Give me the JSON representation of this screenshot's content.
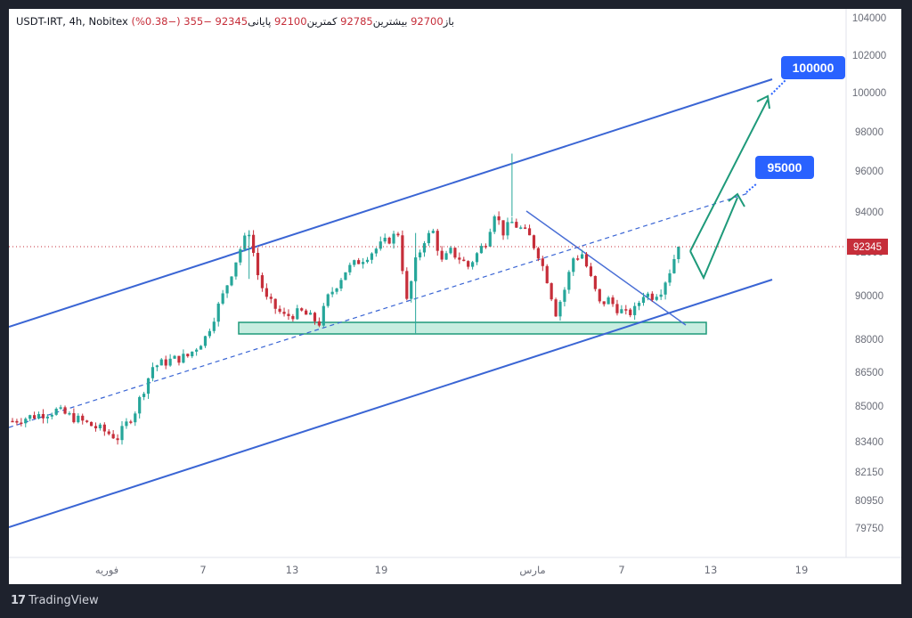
{
  "header": {
    "symbol": "USDT-IRT, 4h, Nobitex",
    "open_label": "باز",
    "open_value": "92700",
    "high_label": "بیشترین",
    "high_value": "92785",
    "low_label": "کمترین",
    "low_value": "92100",
    "close_label": "پایانی",
    "close_value": "92345",
    "change": "−355 (−0.38%)"
  },
  "footer": {
    "brand": "TradingView"
  },
  "colors": {
    "up": "#26a69a",
    "down": "#c62e3a",
    "channel": "#3a65d4",
    "zone": "#1e9a7a",
    "target_badge": "#2962ff",
    "price_badge": "#c62e3a"
  },
  "chart_data": {
    "type": "candlestick",
    "timeframe": "4h",
    "y_axis": {
      "ticks": [
        "104000",
        "102000",
        "100000",
        "98000",
        "96000",
        "94000",
        "92000",
        "90000",
        "88000",
        "86500",
        "85000",
        "83400",
        "82150",
        "80950",
        "79750"
      ],
      "current_price": "92345"
    },
    "x_axis": {
      "ticks": [
        "فوریه",
        "7",
        "13",
        "19",
        "مارس",
        "7",
        "13",
        "19"
      ]
    },
    "targets": [
      "95000",
      "100000"
    ],
    "price_path": [
      [
        0,
        84000
      ],
      [
        6,
        84300
      ],
      [
        10,
        84500
      ],
      [
        14,
        84150
      ],
      [
        20,
        83600
      ],
      [
        24,
        83200
      ],
      [
        28,
        84500
      ],
      [
        32,
        86600
      ],
      [
        36,
        86900
      ],
      [
        40,
        87100
      ],
      [
        44,
        88000
      ],
      [
        48,
        90000
      ],
      [
        52,
        92250
      ],
      [
        54,
        93100
      ],
      [
        56,
        91000
      ],
      [
        58,
        89800
      ],
      [
        62,
        89000
      ],
      [
        66,
        89200
      ],
      [
        70,
        88700
      ],
      [
        72,
        89900
      ],
      [
        76,
        91200
      ],
      [
        80,
        91800
      ],
      [
        84,
        92400
      ],
      [
        88,
        93000
      ],
      [
        90,
        89700
      ],
      [
        92,
        91600
      ],
      [
        94,
        92700
      ],
      [
        96,
        93050
      ],
      [
        98,
        91600
      ],
      [
        100,
        92100
      ],
      [
        102,
        91800
      ],
      [
        104,
        91400
      ],
      [
        108,
        92600
      ],
      [
        110,
        94000
      ],
      [
        112,
        93050
      ],
      [
        114,
        93500
      ],
      [
        116,
        93200
      ],
      [
        118,
        92800
      ],
      [
        120,
        92000
      ],
      [
        122,
        90800
      ],
      [
        124,
        89200
      ],
      [
        126,
        90300
      ],
      [
        128,
        91800
      ],
      [
        130,
        92000
      ],
      [
        132,
        90800
      ],
      [
        134,
        89600
      ],
      [
        136,
        89800
      ],
      [
        138,
        89400
      ],
      [
        140,
        89100
      ],
      [
        142,
        89300
      ],
      [
        144,
        90100
      ],
      [
        146,
        90000
      ],
      [
        148,
        90300
      ],
      [
        150,
        91200
      ],
      [
        152,
        92400
      ]
    ]
  }
}
